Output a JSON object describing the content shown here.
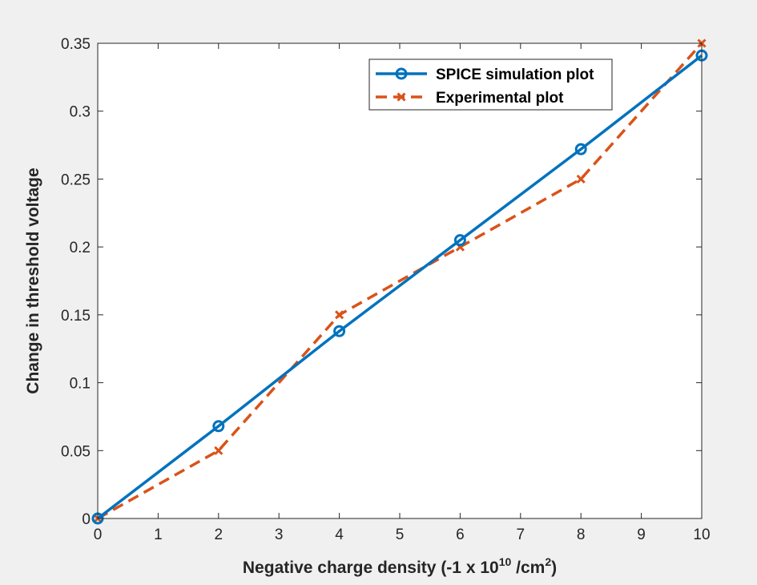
{
  "chart_data": {
    "type": "line",
    "title": "",
    "xlabel_parts": {
      "prefix": "Negative charge density (-1 x 10",
      "exp": "10",
      "mid": " /cm",
      "sup2": "2",
      "suffix": ")"
    },
    "ylabel": "Change in threshold voltage",
    "xlim": [
      0,
      10
    ],
    "ylim": [
      0,
      0.35
    ],
    "xticks": [
      0,
      1,
      2,
      3,
      4,
      5,
      6,
      7,
      8,
      9,
      10
    ],
    "xtick_labels": [
      "0",
      "1",
      "2",
      "3",
      "4",
      "5",
      "6",
      "7",
      "8",
      "9",
      "10"
    ],
    "yticks": [
      0,
      0.05,
      0.1,
      0.15,
      0.2,
      0.25,
      0.3,
      0.35
    ],
    "ytick_labels": [
      "0",
      "0.05",
      "0.1",
      "0.15",
      "0.2",
      "0.25",
      "0.3",
      "0.35"
    ],
    "grid": false,
    "legend_position": "top-right",
    "series": [
      {
        "name": "SPICE simulation plot",
        "color": "#0072bd",
        "line_style": "solid",
        "marker": "circle",
        "x": [
          0,
          2,
          4,
          6,
          8,
          10
        ],
        "y": [
          0,
          0.068,
          0.138,
          0.205,
          0.272,
          0.341
        ]
      },
      {
        "name": "Experimental plot",
        "color": "#d95319",
        "line_style": "dashed",
        "marker": "x",
        "x": [
          0,
          2,
          4,
          6,
          8,
          10
        ],
        "y": [
          0,
          0.05,
          0.15,
          0.2,
          0.25,
          0.35
        ]
      }
    ]
  }
}
